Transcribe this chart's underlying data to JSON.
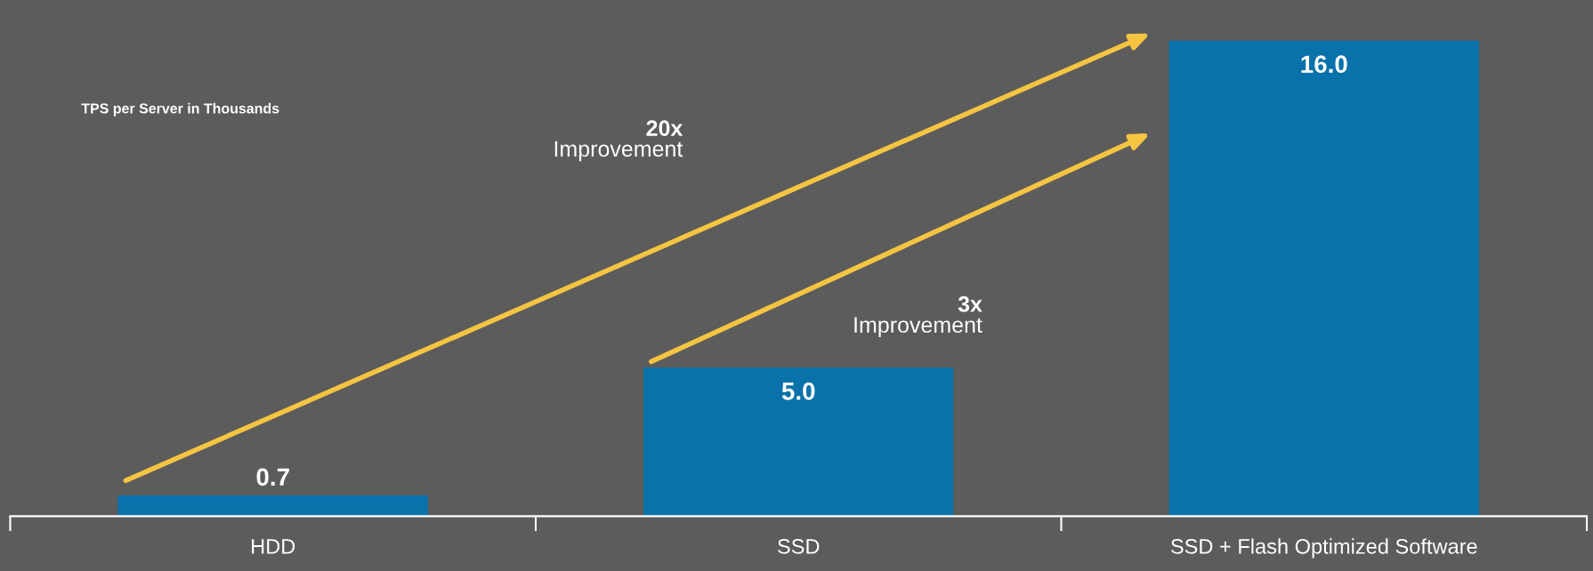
{
  "chart_data": {
    "type": "bar",
    "title": "TPS per Server in Thousands",
    "categories": [
      "HDD",
      "SSD",
      "SSD + Flash Optimized Software"
    ],
    "values": [
      0.7,
      5.0,
      16.0
    ],
    "value_labels": [
      "0.7",
      "5.0",
      "16.0"
    ],
    "color": "#0a72aa",
    "grid": false,
    "legend": false,
    "annotations": [
      "20x\nImprovement",
      "3x\nImprovement"
    ]
  }
}
